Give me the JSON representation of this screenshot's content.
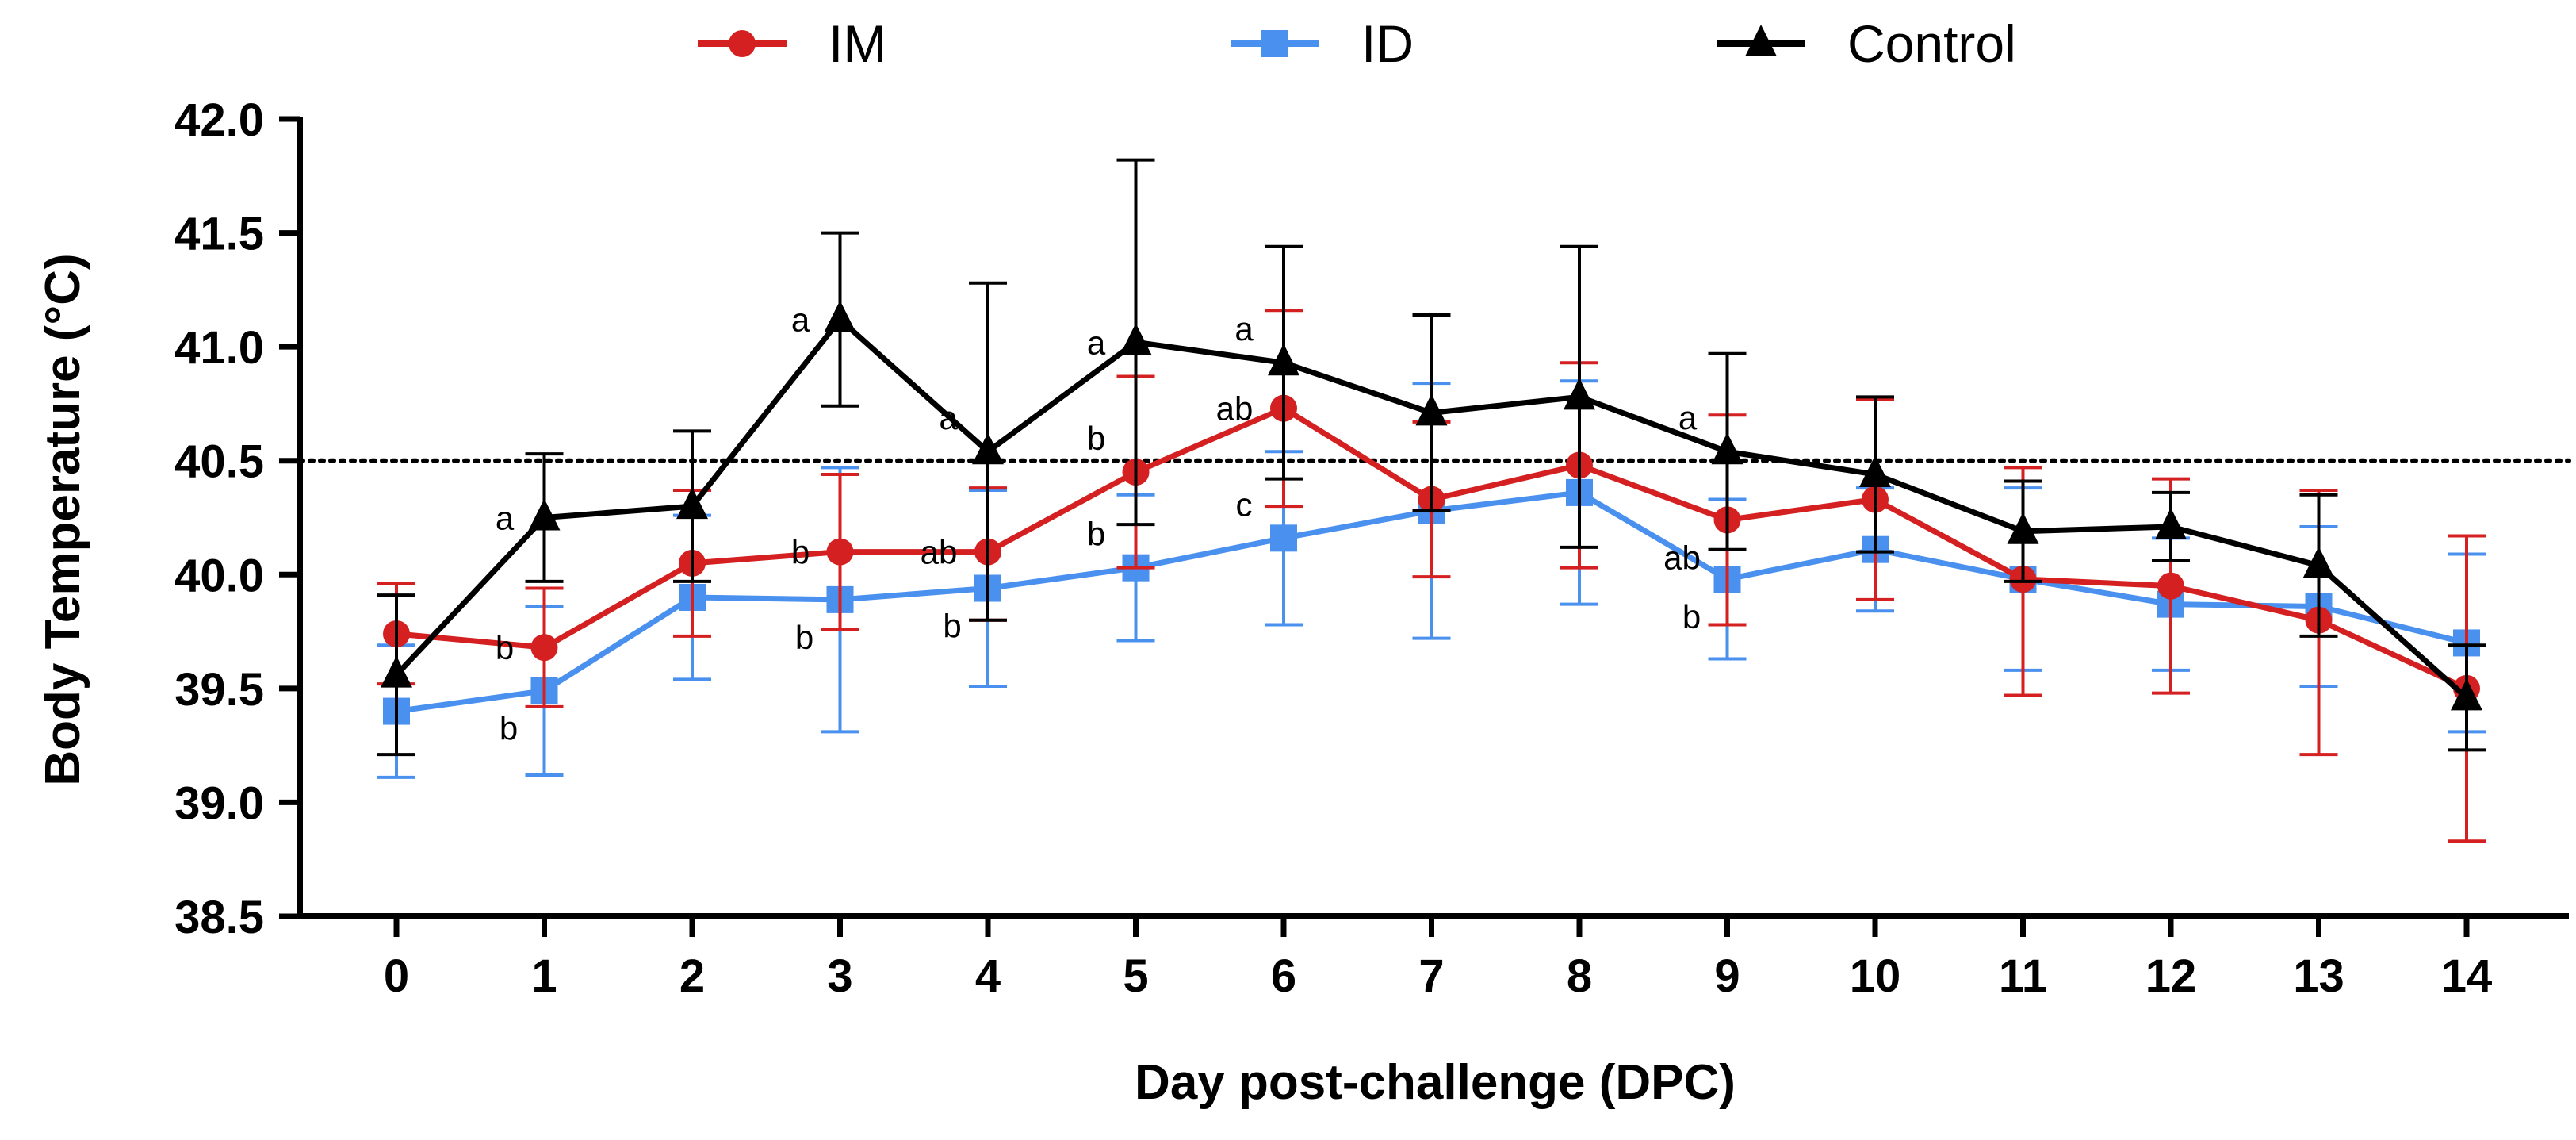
{
  "chart_data": {
    "type": "line",
    "title": "",
    "xlabel": "Day post-challenge (DPC)",
    "ylabel": "Body Temperature (°C)",
    "ylim": [
      38.5,
      42.0
    ],
    "yticks": [
      "38.5",
      "39.0",
      "39.5",
      "40.0",
      "40.5",
      "41.0",
      "41.5",
      "42.0"
    ],
    "x": [
      0,
      1,
      2,
      3,
      4,
      5,
      6,
      7,
      8,
      9,
      10,
      11,
      12,
      13,
      14
    ],
    "x_tick_labels": [
      "0",
      "1",
      "2",
      "3",
      "4",
      "5",
      "6",
      "7",
      "8",
      "9",
      "10",
      "11",
      "12",
      "13",
      "14"
    ],
    "reference_line": {
      "y": 40.5,
      "style": "dotted"
    },
    "legend_position": "top",
    "series": [
      {
        "name": "IM",
        "color": "#d42020",
        "marker": "circle",
        "values": [
          39.74,
          39.68,
          40.05,
          40.1,
          40.1,
          40.45,
          40.73,
          40.33,
          40.48,
          40.24,
          40.33,
          39.98,
          39.95,
          39.8,
          39.5
        ],
        "err_low": [
          39.52,
          39.42,
          39.73,
          39.76,
          39.8,
          40.03,
          40.3,
          39.99,
          40.03,
          39.78,
          39.89,
          39.47,
          39.48,
          39.21,
          38.83
        ],
        "err_high": [
          39.96,
          39.94,
          40.37,
          40.44,
          40.38,
          40.87,
          41.16,
          40.67,
          40.93,
          40.7,
          40.77,
          40.47,
          40.42,
          40.37,
          40.17
        ]
      },
      {
        "name": "ID",
        "color": "#4a90ee",
        "marker": "square",
        "values": [
          39.4,
          39.49,
          39.9,
          39.89,
          39.94,
          40.03,
          40.16,
          40.28,
          40.36,
          39.98,
          40.11,
          39.98,
          39.87,
          39.86,
          39.7
        ],
        "err_low": [
          39.11,
          39.12,
          39.54,
          39.31,
          39.51,
          39.71,
          39.78,
          39.72,
          39.87,
          39.63,
          39.84,
          39.58,
          39.58,
          39.51,
          39.31
        ],
        "err_high": [
          39.69,
          39.86,
          40.26,
          40.47,
          40.37,
          40.35,
          40.54,
          40.84,
          40.85,
          40.33,
          40.38,
          40.38,
          40.16,
          40.21,
          40.09
        ]
      },
      {
        "name": "Control",
        "color": "#000000",
        "marker": "triangle",
        "values": [
          39.56,
          40.25,
          40.3,
          41.12,
          40.54,
          41.02,
          40.93,
          40.71,
          40.78,
          40.54,
          40.44,
          40.19,
          40.21,
          40.04,
          39.46
        ],
        "err_low": [
          39.21,
          39.97,
          39.97,
          40.74,
          39.8,
          40.22,
          40.42,
          40.28,
          40.12,
          40.11,
          40.1,
          39.97,
          40.06,
          39.73,
          39.23
        ],
        "err_high": [
          39.91,
          40.53,
          40.63,
          41.5,
          41.28,
          41.82,
          41.44,
          41.14,
          41.44,
          40.97,
          40.78,
          40.41,
          40.36,
          40.35,
          39.69
        ]
      }
    ],
    "annotations": [
      {
        "x": 1,
        "y": 40.25,
        "text": "a",
        "side": "left"
      },
      {
        "x": 1,
        "y": 39.68,
        "text": "b",
        "side": "left"
      },
      {
        "x": 1,
        "y": 39.49,
        "text": "b",
        "side": "below-left"
      },
      {
        "x": 3,
        "y": 41.12,
        "text": "a",
        "side": "left"
      },
      {
        "x": 3,
        "y": 40.1,
        "text": "b",
        "side": "left"
      },
      {
        "x": 3,
        "y": 39.89,
        "text": "b",
        "side": "below-left"
      },
      {
        "x": 4,
        "y": 40.54,
        "text": "a",
        "side": "above-left"
      },
      {
        "x": 4,
        "y": 40.1,
        "text": "ab",
        "side": "left"
      },
      {
        "x": 4,
        "y": 39.94,
        "text": "b",
        "side": "below-left"
      },
      {
        "x": 5,
        "y": 41.02,
        "text": "a",
        "side": "left"
      },
      {
        "x": 5,
        "y": 40.45,
        "text": "b",
        "side": "above-left"
      },
      {
        "x": 5,
        "y": 40.03,
        "text": "b",
        "side": "above-left"
      },
      {
        "x": 6,
        "y": 40.93,
        "text": "a",
        "side": "above-left"
      },
      {
        "x": 6,
        "y": 40.73,
        "text": "ab",
        "side": "left"
      },
      {
        "x": 6,
        "y": 40.16,
        "text": "c",
        "side": "above-left"
      },
      {
        "x": 9,
        "y": 40.54,
        "text": "a",
        "side": "above-left"
      },
      {
        "x": 9,
        "y": 40.24,
        "text": "ab",
        "side": "below-left"
      },
      {
        "x": 9,
        "y": 39.98,
        "text": "b",
        "side": "below-left"
      }
    ]
  }
}
